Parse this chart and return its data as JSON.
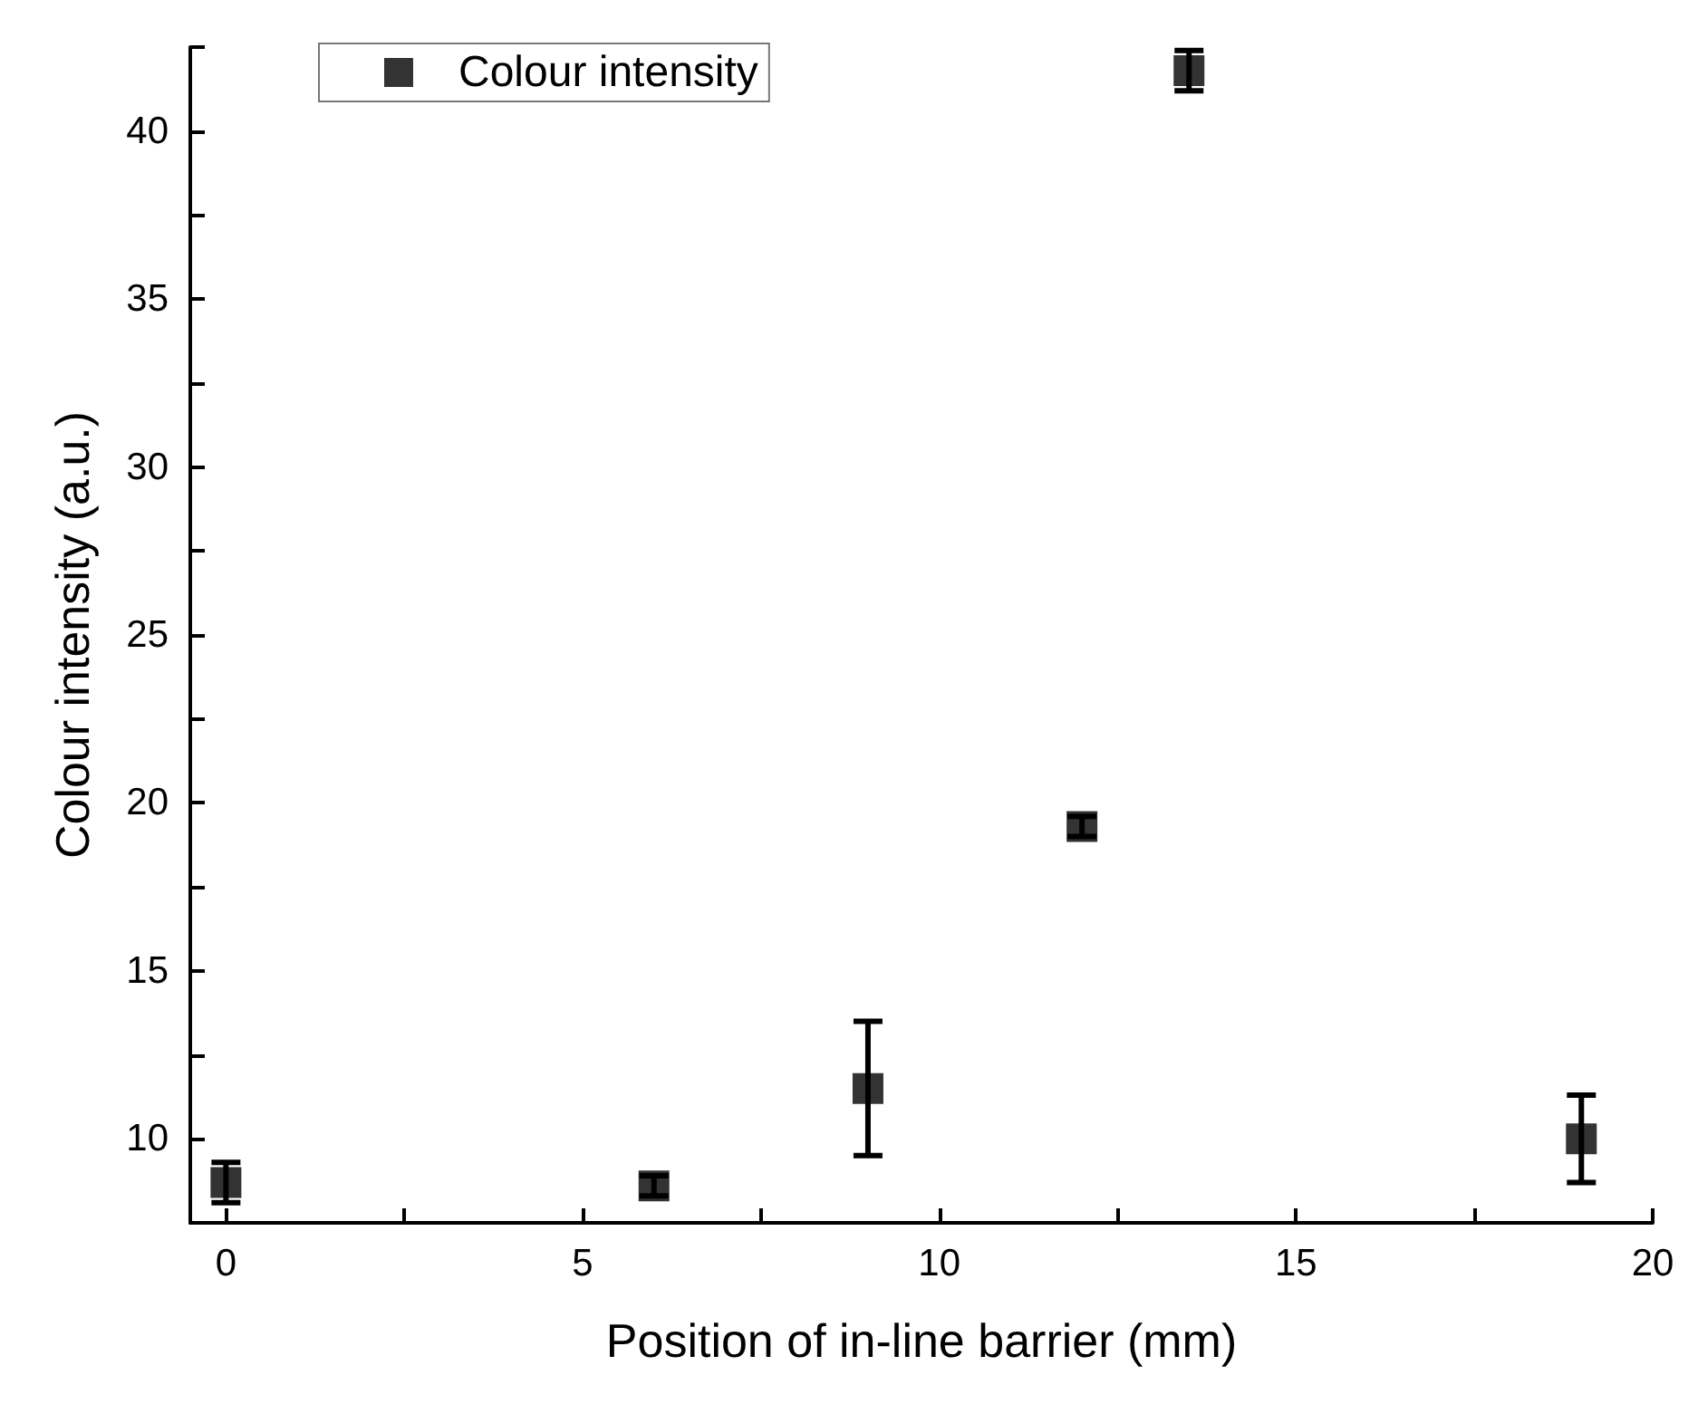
{
  "chart_data": {
    "type": "scatter",
    "xlabel": "Position of in-line barrier (mm)",
    "ylabel": "Colour intensity (a.u.)",
    "x": [
      0,
      6,
      9,
      12,
      13.5,
      19
    ],
    "series": [
      {
        "name": "Colour intensity",
        "color": "#000000",
        "values": [
          8.7,
          8.6,
          11.5,
          19.3,
          41.8,
          10
        ],
        "errors": [
          0.6,
          0.3,
          2,
          0.3,
          0.6,
          1.3
        ]
      }
    ],
    "xlim": [
      -0.5,
      20
    ],
    "xticks": [
      0,
      {
        "value": 2.5,
        "label": null
      },
      5,
      {
        "value": 7.5,
        "label": null
      },
      10,
      {
        "value": 12.5,
        "label": null
      },
      15,
      {
        "value": 17.5,
        "label": null
      },
      20
    ],
    "ylim": [
      7.5,
      42.5
    ],
    "yticks": [
      10,
      {
        "value": 12.5,
        "label": null
      },
      15,
      {
        "value": 17.5,
        "label": null
      },
      20,
      {
        "value": 22.5,
        "label": null
      },
      25,
      {
        "value": 27.5,
        "label": null
      },
      30,
      {
        "value": 32.5,
        "label": null
      },
      35,
      {
        "value": 37.5,
        "label": null
      },
      40,
      {
        "value": 42.5,
        "label": null
      }
    ],
    "marker": "square",
    "grid": false,
    "legend": "top left"
  }
}
